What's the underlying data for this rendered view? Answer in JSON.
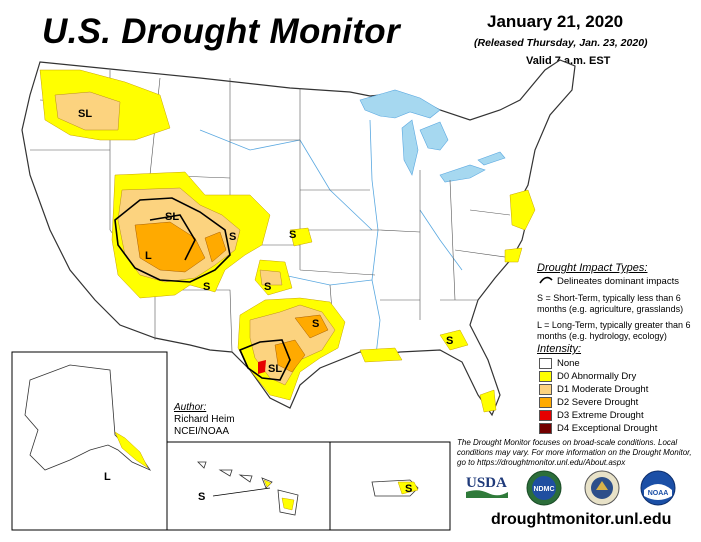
{
  "header": {
    "title": "U.S. Drought Monitor",
    "date": "January 21, 2020",
    "released": "(Released Thursday, Jan. 23, 2020)",
    "valid": "Valid 7 a.m. EST"
  },
  "map_labels": {
    "sl_northwest": "SL",
    "sl_colorado": "SL",
    "l_southwest": "L",
    "s_co_east": "S",
    "s_kansas": "S",
    "s_nm": "S",
    "s_ok": "S",
    "s_tx_north": "S",
    "sl_tx_south": "SL",
    "s_gulf": "S",
    "l_alaska": "L",
    "s_hawaii": "S",
    "s_puerto_rico": "S"
  },
  "impact_legend": {
    "title": "Drought Impact Types:",
    "delineates": "Delineates dominant impacts",
    "short_term": "S = Short-Term, typically less than 6 months (e.g. agriculture, grasslands)",
    "long_term": "L = Long-Term, typically greater than 6 months (e.g. hydrology, ecology)"
  },
  "intensity_legend": {
    "title": "Intensity:",
    "items": [
      {
        "label": "None",
        "color": "#ffffff"
      },
      {
        "label": "D0 Abnormally Dry",
        "color": "#ffff00"
      },
      {
        "label": "D1 Moderate Drought",
        "color": "#fcd37f"
      },
      {
        "label": "D2 Severe Drought",
        "color": "#ffaa00"
      },
      {
        "label": "D3 Extreme Drought",
        "color": "#e60000"
      },
      {
        "label": "D4 Exceptional Drought",
        "color": "#730000"
      }
    ]
  },
  "author": {
    "header": "Author:",
    "name": "Richard Heim",
    "org": "NCEI/NOAA"
  },
  "note": "The Drought Monitor focuses on broad-scale conditions. Local conditions may vary. For more information on the Drought Monitor, go to https://droughtmonitor.unl.edu/About.aspx",
  "logos": {
    "usda": "USDA",
    "ndmc": "NDMC",
    "noaa": "NOAA"
  },
  "url": "droughtmonitor.unl.edu",
  "colors": {
    "water": "#a6d8f0",
    "river": "#5aa8e0",
    "d0": "#ffff00",
    "d1": "#fcd37f",
    "d2": "#ffaa00",
    "d3": "#e60000",
    "d4": "#730000"
  }
}
